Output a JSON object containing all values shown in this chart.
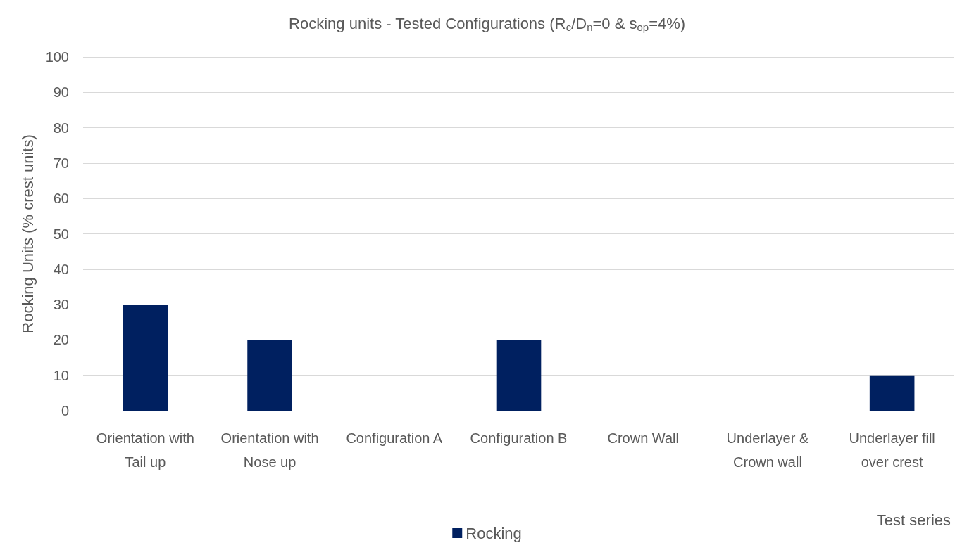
{
  "chart_data": {
    "type": "bar",
    "title": "Rocking units - Tested Configurations (R$_{c}$/D$_{n}$=0 & s$_{op}$=4%)",
    "xlabel": "Test series",
    "ylabel": "Rocking Units (% crest units)",
    "categories": [
      "Orientation with Tail up",
      "Orientation with Nose up",
      "Configuration A",
      "Configuration B",
      "Crown Wall",
      "Underlayer & Crown wall",
      "Underlayer fill over crest"
    ],
    "series": [
      {
        "name": "Rocking",
        "color": "#002060",
        "values": [
          30,
          20,
          0,
          20,
          0,
          0,
          10
        ]
      }
    ],
    "ylim": [
      0,
      100
    ],
    "yticks": [
      0,
      10,
      20,
      30,
      40,
      50,
      60,
      70,
      80,
      90,
      100
    ],
    "grid": "y",
    "legend": "bottom"
  }
}
